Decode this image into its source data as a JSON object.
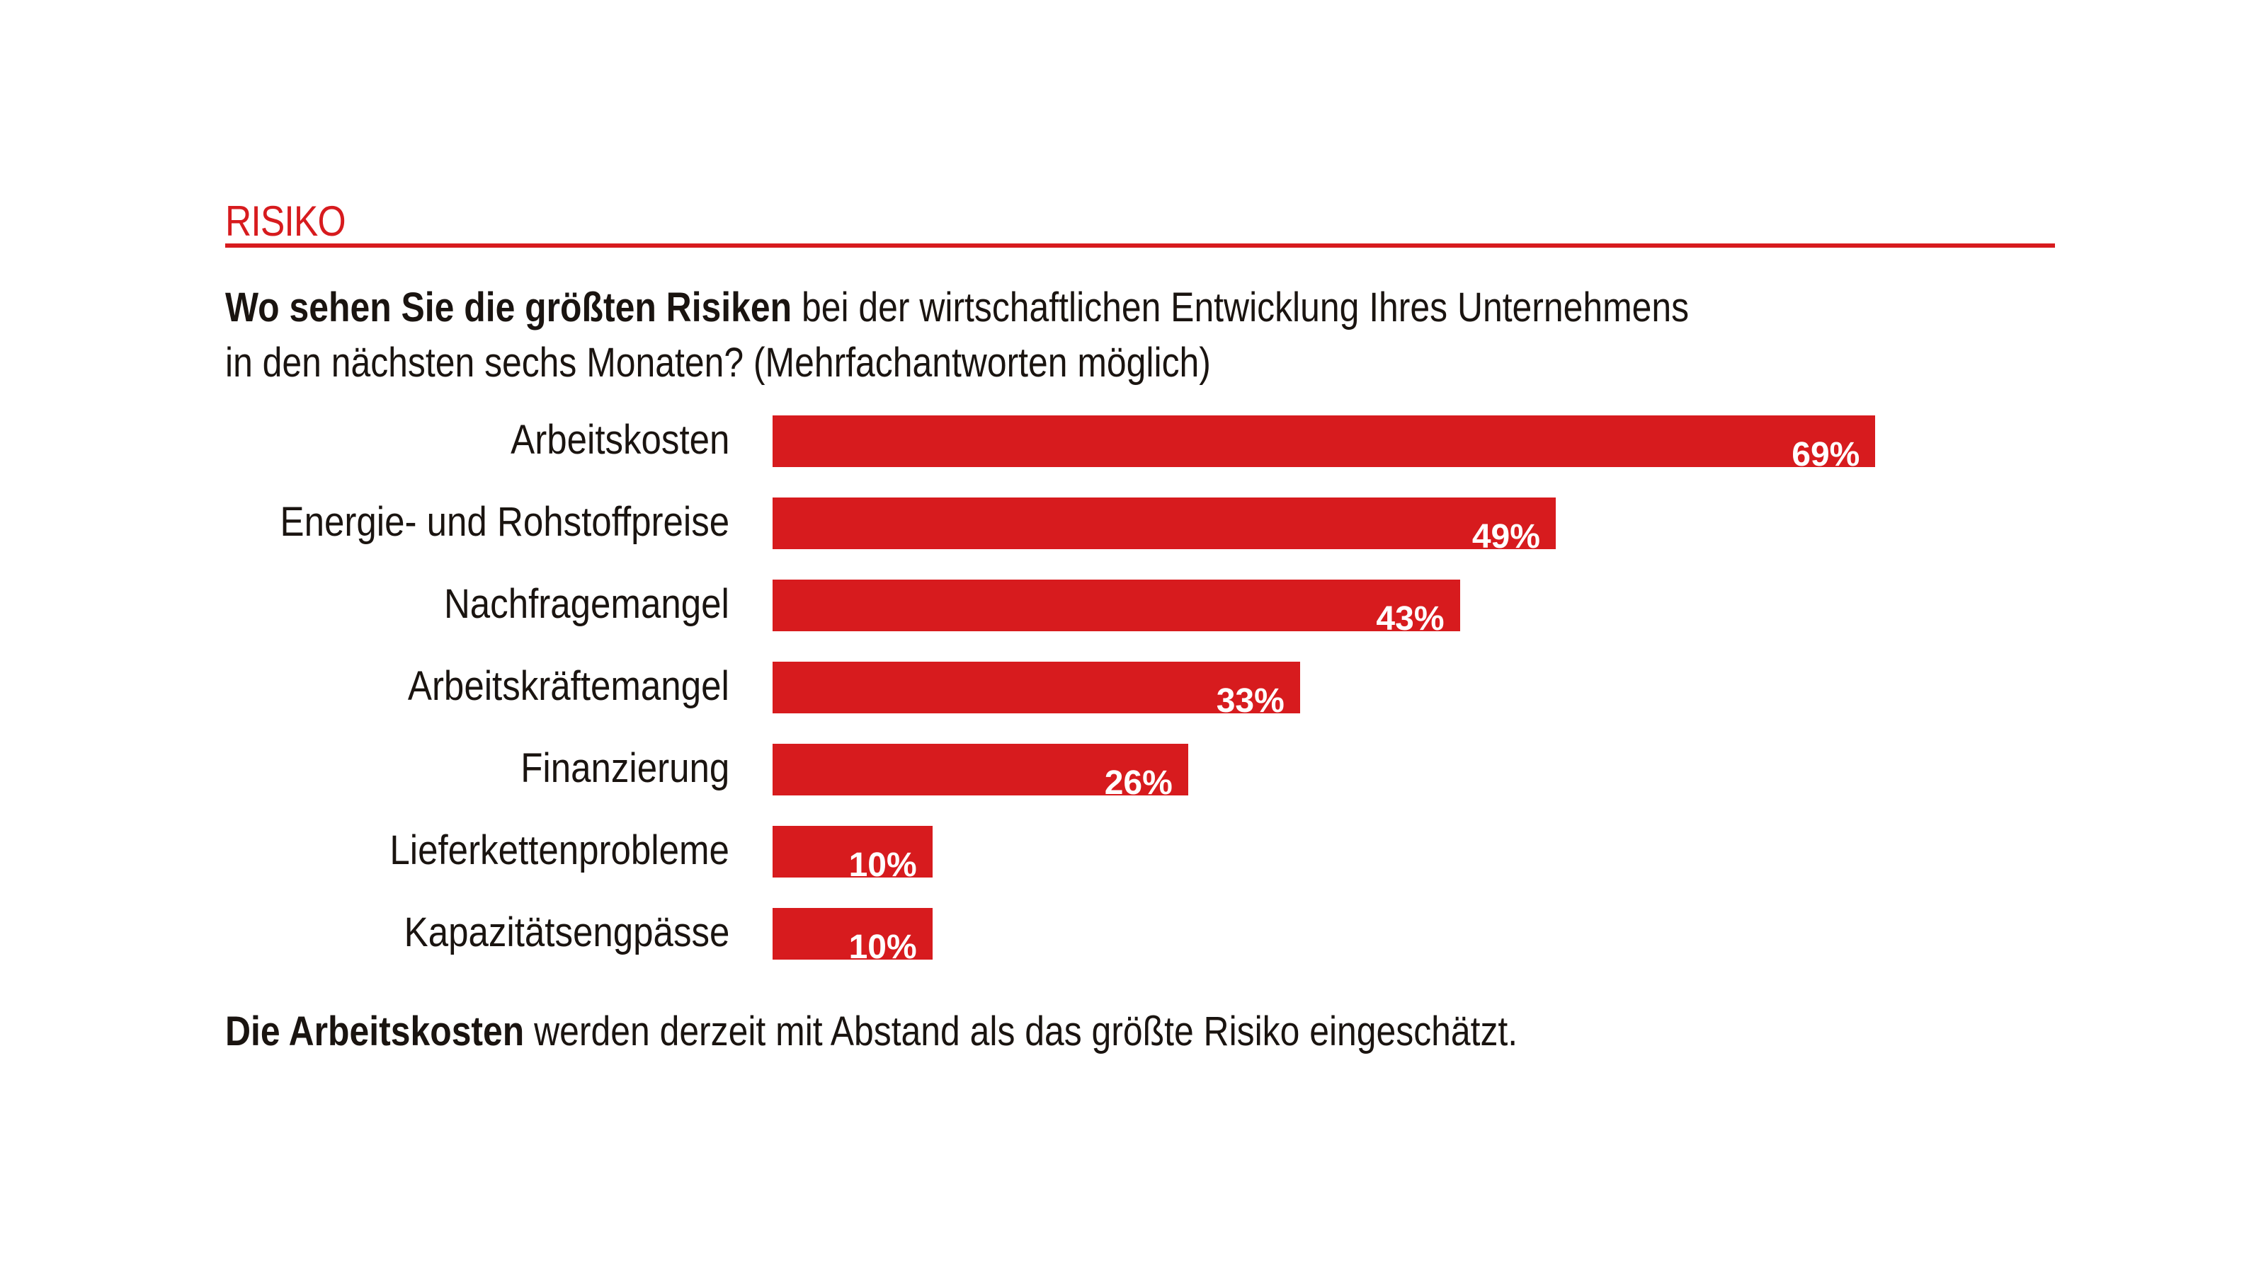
{
  "header": {
    "kicker": "RISIKO",
    "question_bold": "Wo sehen Sie die größten Risiken",
    "question_rest_line1": " bei der wirtschaftlichen Entwicklung Ihres Unternehmens",
    "question_line2": "in den nächsten sechs Monaten? (Mehrfachantworten möglich)"
  },
  "footer": {
    "bold": "Die Arbeitskosten",
    "rest": " werden derzeit mit Abstand als das größte Risiko eingeschätzt."
  },
  "colors": {
    "accent": "#d71b1e",
    "text": "#1a1410"
  },
  "chart_data": {
    "type": "bar",
    "orientation": "horizontal",
    "categories": [
      "Arbeitskosten",
      "Energie- und Rohstoffpreise",
      "Nachfragemangel",
      "Arbeitskräftemangel",
      "Finanzierung",
      "Lieferkettenprobleme",
      "Kapazitätsengpässe"
    ],
    "values": [
      69,
      49,
      43,
      33,
      26,
      10,
      10
    ],
    "value_labels": [
      "69%",
      "49%",
      "43%",
      "33%",
      "26%",
      "10%",
      "10%"
    ],
    "unit": "%",
    "grid": false,
    "legend": "none"
  }
}
